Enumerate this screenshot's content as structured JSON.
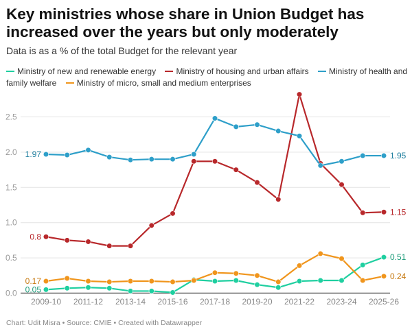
{
  "header": {
    "title": "Key ministries whose share in Union Budget has increased over the years but only moderately",
    "subtitle": "Data is as a % of the total Budget for the relevant year"
  },
  "footer": {
    "text": "Chart: Udit Misra • Source: CMIE • Created with Datawrapper"
  },
  "chart_data": {
    "type": "line",
    "title": "Key ministries whose share in Union Budget has increased over the years but only moderately",
    "subtitle": "Data is as a % of the total Budget for the relevant year",
    "x": [
      "2009-10",
      "2010-11",
      "2011-12",
      "2012-13",
      "2013-14",
      "2014-15",
      "2015-16",
      "2016-17",
      "2017-18",
      "2018-19",
      "2019-20",
      "2020-21",
      "2021-22",
      "2022-23",
      "2023-24",
      "2024-25",
      "2025-26"
    ],
    "xticks": [
      "2009-10",
      "2011-12",
      "2013-14",
      "2015-16",
      "2017-18",
      "2019-20",
      "2021-22",
      "2023-24",
      "2025-26"
    ],
    "yticks": [
      "0.0",
      "0.5",
      "1.0",
      "1.5",
      "2.0",
      "2.5"
    ],
    "ylim": [
      0,
      2.8
    ],
    "grid": true,
    "legend_placement": "top",
    "series": [
      {
        "name": "Ministry of new and renewable energy",
        "color": "#1fcfa0",
        "values": [
          0.05,
          0.07,
          0.08,
          0.07,
          0.03,
          0.03,
          0.01,
          0.19,
          0.17,
          0.18,
          0.12,
          0.08,
          0.17,
          0.18,
          0.18,
          0.4,
          0.51
        ],
        "start_label": "0.05",
        "end_label": "0.51",
        "label_color": "#1a9a78"
      },
      {
        "name": "Ministry of housing and urban affairs",
        "color": "#b8282b",
        "values": [
          0.8,
          0.75,
          0.73,
          0.67,
          0.67,
          0.96,
          1.13,
          1.87,
          1.87,
          1.75,
          1.57,
          1.33,
          2.82,
          1.84,
          1.54,
          1.14,
          1.15
        ],
        "start_label": "0.8",
        "end_label": "1.15",
        "label_color": "#b8282b"
      },
      {
        "name": "Ministry of health and family welfare",
        "color": "#2e9fc9",
        "values": [
          1.97,
          1.96,
          2.03,
          1.93,
          1.89,
          1.9,
          1.9,
          1.97,
          2.48,
          2.36,
          2.39,
          2.3,
          2.23,
          1.81,
          1.87,
          1.95,
          1.95
        ],
        "start_label": "1.97",
        "end_label": "1.95",
        "label_color": "#1f7f9f"
      },
      {
        "name": "Ministry of micro, small and medium enterprises",
        "color": "#f0951c",
        "values": [
          0.17,
          0.21,
          0.17,
          0.16,
          0.17,
          0.17,
          0.16,
          0.18,
          0.29,
          0.28,
          0.25,
          0.16,
          0.39,
          0.56,
          0.49,
          0.18,
          0.24
        ],
        "start_label": "0.17",
        "end_label": "0.24",
        "label_color": "#c77a12"
      }
    ]
  }
}
